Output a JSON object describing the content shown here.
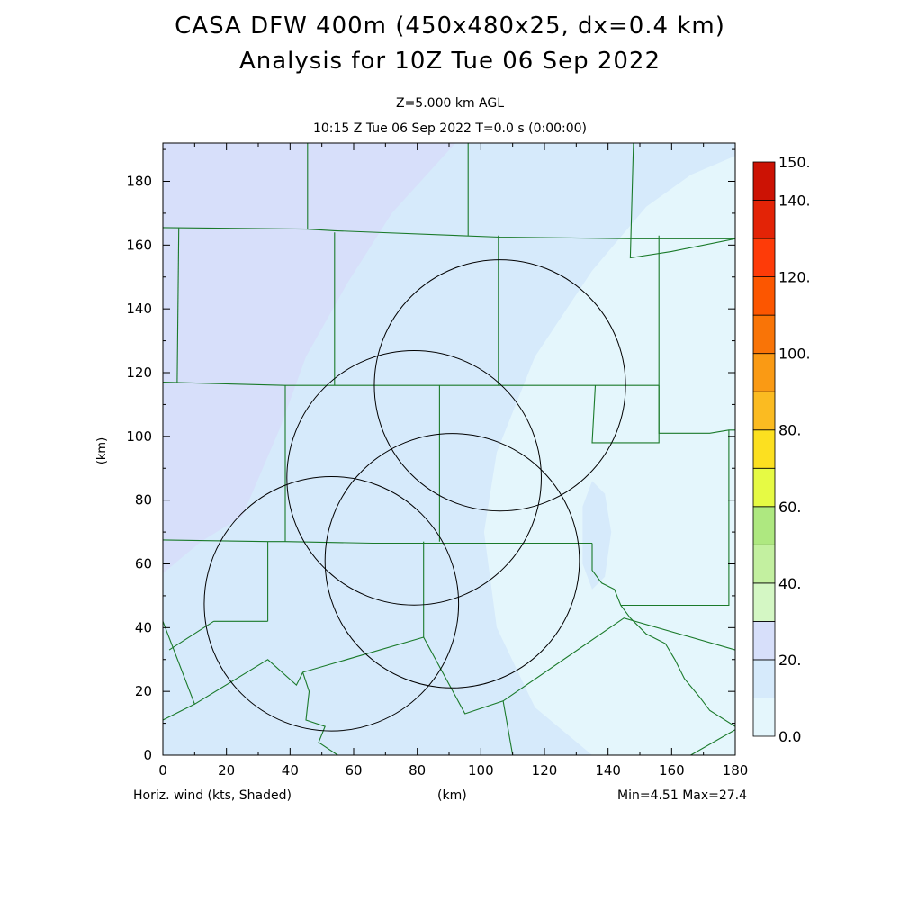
{
  "header": {
    "title": "CASA DFW 400m (450x480x25, dx=0.4 km)",
    "analysis": "Analysis for 10Z Tue 06 Sep 2022",
    "level": "Z=5.000 km AGL",
    "valid_time": "10:15 Z Tue 06 Sep 2022    T=0.0 s (0:00:00)"
  },
  "footer": {
    "field_label": "Horiz. wind (kts, Shaded)",
    "x_unit": "(km)",
    "min_max": "Min=4.51 Max=27.4"
  },
  "colorbar": {
    "levels": [
      0,
      10,
      20,
      30,
      40,
      50,
      60,
      70,
      80,
      90,
      100,
      110,
      120,
      130,
      140,
      150
    ],
    "colors": [
      "#e4f6fc",
      "#d6eafb",
      "#d7dffa",
      "#d4f7c4",
      "#c3f0a0",
      "#aee880",
      "#e6fa44",
      "#fce020",
      "#fbbb21",
      "#fa9a14",
      "#f97407",
      "#fc5600",
      "#fe3b08",
      "#e32306",
      "#cc1204"
    ],
    "tick_labels": [
      "0.0",
      "20.",
      "40.",
      "60.",
      "80.",
      "100.",
      "120.",
      "140.",
      "150."
    ]
  },
  "chart_data": {
    "type": "heatmap",
    "title": "CASA DFW 400m (450x480x25, dx=0.4 km)",
    "subtitle": "Analysis for 10Z Tue 06 Sep 2022",
    "xlabel": "(km)",
    "ylabel": "(km)",
    "xlim": [
      0,
      180
    ],
    "ylim": [
      0,
      192
    ],
    "xticks": [
      0,
      20,
      40,
      60,
      80,
      100,
      120,
      140,
      160,
      180
    ],
    "yticks": [
      0,
      20,
      40,
      60,
      80,
      100,
      120,
      140,
      160,
      180
    ],
    "field": "Horizontal wind speed (kts)",
    "min": 4.51,
    "max": 27.4,
    "shaded_regions": [
      {
        "band": "20-30",
        "color": "#d7dffa",
        "polygon": [
          [
            0,
            192
          ],
          [
            92,
            192
          ],
          [
            72,
            170
          ],
          [
            58,
            148
          ],
          [
            45,
            125
          ],
          [
            37,
            103
          ],
          [
            25,
            75
          ],
          [
            12,
            67
          ],
          [
            0,
            57
          ]
        ]
      },
      {
        "band": "0-10",
        "color": "#e4f6fc",
        "polygon": [
          [
            180,
            192
          ],
          [
            180,
            0
          ],
          [
            135,
            0
          ],
          [
            117,
            15
          ],
          [
            105,
            40
          ],
          [
            101,
            70
          ],
          [
            105,
            95
          ],
          [
            117,
            125
          ],
          [
            135,
            152
          ],
          [
            152,
            172
          ],
          [
            166,
            182
          ],
          [
            180,
            188
          ]
        ]
      },
      {
        "band": "10-20",
        "color": "#d6eafb",
        "polygon": [
          [
            135,
            86
          ],
          [
            139,
            82
          ],
          [
            141,
            70
          ],
          [
            139,
            56
          ],
          [
            135,
            52
          ],
          [
            132,
            60
          ],
          [
            132,
            78
          ]
        ]
      }
    ],
    "radar_range_rings": [
      {
        "center": [
          106,
          116
        ],
        "radius": 39.5
      },
      {
        "center": [
          79,
          87
        ],
        "radius": 40
      },
      {
        "center": [
          91,
          61
        ],
        "radius": 40
      },
      {
        "center": [
          53,
          47.5
        ],
        "radius": 40
      }
    ],
    "county_boundaries": [
      [
        [
          0,
          165.5
        ],
        [
          45,
          165
        ],
        [
          54,
          164.5
        ],
        [
          106,
          162.5
        ],
        [
          148,
          162
        ],
        [
          180,
          162
        ]
      ],
      [
        [
          0,
          117
        ],
        [
          38.5,
          116
        ],
        [
          53.5,
          116
        ],
        [
          77,
          116
        ],
        [
          105,
          116
        ],
        [
          135,
          116
        ],
        [
          156,
          116
        ]
      ],
      [
        [
          0,
          67.5
        ],
        [
          33,
          67
        ],
        [
          38.5,
          67
        ],
        [
          66,
          66.5
        ],
        [
          82,
          66.5
        ],
        [
          90,
          66.5
        ],
        [
          135,
          66.5
        ]
      ],
      [
        [
          45.5,
          192
        ],
        [
          45.5,
          165
        ]
      ],
      [
        [
          96,
          192
        ],
        [
          96,
          163
        ]
      ],
      [
        [
          148,
          192
        ],
        [
          147,
          156
        ],
        [
          160,
          158
        ],
        [
          180,
          162
        ]
      ],
      [
        [
          54,
          164
        ],
        [
          54,
          116
        ]
      ],
      [
        [
          105.5,
          163
        ],
        [
          105.5,
          116
        ]
      ],
      [
        [
          38.5,
          116
        ],
        [
          38.5,
          67
        ]
      ],
      [
        [
          87,
          116
        ],
        [
          87,
          67
        ]
      ],
      [
        [
          136,
          116
        ],
        [
          135,
          98
        ],
        [
          156,
          98
        ],
        [
          156,
          116
        ]
      ],
      [
        [
          156,
          163
        ],
        [
          156,
          101
        ],
        [
          172,
          101
        ],
        [
          178,
          102
        ],
        [
          180,
          102
        ]
      ],
      [
        [
          5,
          165.5
        ],
        [
          4.5,
          117
        ]
      ],
      [
        [
          33,
          67
        ],
        [
          33,
          42
        ]
      ],
      [
        [
          16,
          42
        ],
        [
          33,
          42
        ]
      ],
      [
        [
          2,
          33
        ],
        [
          16,
          42
        ]
      ],
      [
        [
          0,
          42
        ],
        [
          10,
          16
        ],
        [
          33,
          30
        ],
        [
          42,
          22
        ],
        [
          44,
          26
        ],
        [
          82,
          37
        ],
        [
          95,
          13
        ],
        [
          107,
          17
        ],
        [
          145,
          43
        ],
        [
          180,
          33
        ]
      ],
      [
        [
          0,
          11
        ],
        [
          10,
          16
        ]
      ],
      [
        [
          82,
          67
        ],
        [
          82,
          37
        ]
      ],
      [
        [
          44,
          26
        ],
        [
          46,
          20
        ],
        [
          45,
          11
        ],
        [
          51,
          9
        ],
        [
          49,
          4
        ],
        [
          55,
          0
        ]
      ],
      [
        [
          135,
          66.5
        ],
        [
          135,
          58
        ],
        [
          138,
          54
        ],
        [
          142,
          52
        ],
        [
          144,
          47
        ],
        [
          147,
          43
        ],
        [
          152,
          38
        ],
        [
          158,
          35
        ],
        [
          161,
          30
        ],
        [
          164,
          24
        ],
        [
          169,
          18
        ],
        [
          172,
          14
        ],
        [
          180,
          9
        ]
      ],
      [
        [
          144,
          47
        ],
        [
          178,
          47
        ],
        [
          178,
          102
        ]
      ],
      [
        [
          107,
          17
        ],
        [
          110,
          0
        ]
      ],
      [
        [
          166,
          0
        ],
        [
          180,
          8
        ]
      ]
    ]
  }
}
